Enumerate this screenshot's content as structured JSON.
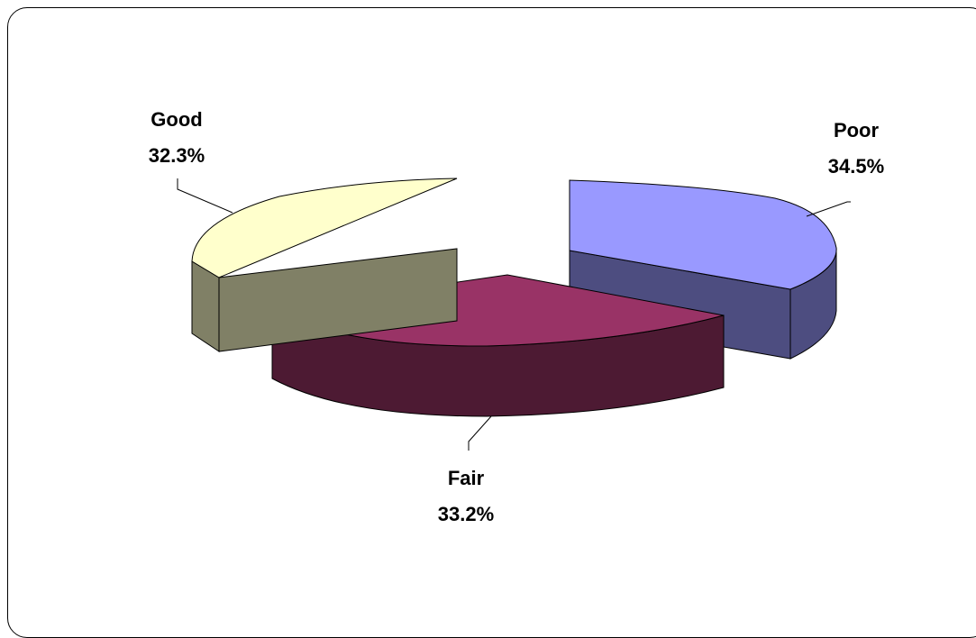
{
  "chart_data": {
    "type": "pie",
    "variant": "3d-exploded",
    "title": "",
    "slices": [
      {
        "label": "Poor",
        "value": 34.5,
        "display": "34.5%",
        "color": "#9999ff",
        "side_color": "#4d4d80"
      },
      {
        "label": "Fair",
        "value": 33.2,
        "display": "33.2%",
        "color": "#993366",
        "side_color": "#4d1a33"
      },
      {
        "label": "Good",
        "value": 32.3,
        "display": "32.3%",
        "color": "#ffffcc",
        "side_color": "#808066"
      }
    ],
    "legend": "none",
    "labels": "outside-with-leader-lines"
  }
}
